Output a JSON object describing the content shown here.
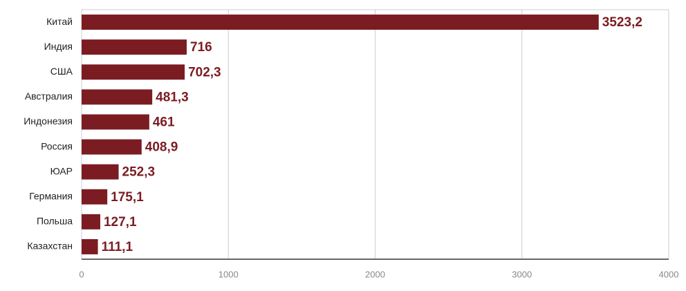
{
  "chart_data": {
    "type": "bar",
    "orientation": "horizontal",
    "categories": [
      "Китай",
      "Индия",
      "США",
      "Австралия",
      "Индонезия",
      "Россия",
      "ЮАР",
      "Германия",
      "Польша",
      "Казахстан"
    ],
    "values": [
      3523.2,
      716,
      702.3,
      481.3,
      461,
      408.9,
      252.3,
      175.1,
      127.1,
      111.1
    ],
    "value_labels": [
      "3523,2",
      "716",
      "702,3",
      "481,3",
      "461",
      "408,9",
      "252,3",
      "175,1",
      "127,1",
      "111,1"
    ],
    "color": "#7b1c22",
    "xlim": [
      0,
      4000
    ],
    "xticks": [
      0,
      1000,
      2000,
      3000,
      4000
    ],
    "grid": true
  }
}
